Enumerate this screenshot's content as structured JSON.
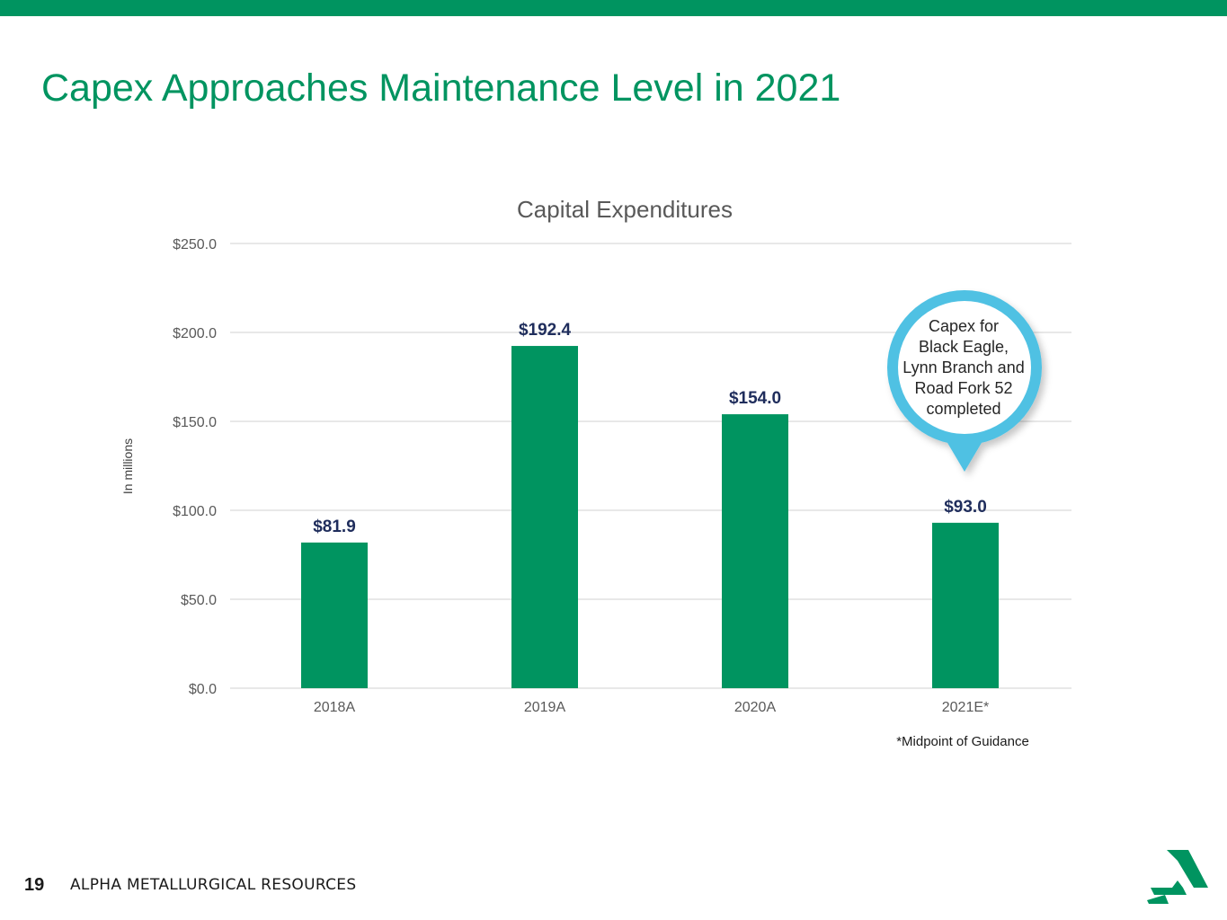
{
  "slide": {
    "title": "Capex Approaches Maintenance Level in 2021",
    "page_number": "19",
    "company": "ALPHA METALLURGICAL RESOURCES"
  },
  "colors": {
    "brand_green": "#009460",
    "bar_label": "#1f2d5c",
    "callout_ring": "#4fc1e3",
    "axis_text": "#595959",
    "grid": "#d9d9d9"
  },
  "chart_data": {
    "type": "bar",
    "title": "Capital Expenditures",
    "ylabel": "In millions",
    "xlabel": "",
    "categories": [
      "2018A",
      "2019A",
      "2020A",
      "2021E*"
    ],
    "values": [
      81.9,
      192.4,
      154.0,
      93.0
    ],
    "value_labels": [
      "$81.9",
      "$192.4",
      "$154.0",
      "$93.0"
    ],
    "ylim": [
      0,
      250
    ],
    "yticks": [
      0,
      50,
      100,
      150,
      200,
      250
    ],
    "ytick_labels": [
      "$0.0",
      "$50.0",
      "$100.0",
      "$150.0",
      "$200.0",
      "$250.0"
    ],
    "grid": true,
    "footnote": "*Midpoint of Guidance",
    "annotation": {
      "category": "2021E*",
      "lines": [
        "Capex for",
        "Black Eagle,",
        "Lynn Branch and",
        "Road Fork 52",
        "completed"
      ]
    }
  }
}
